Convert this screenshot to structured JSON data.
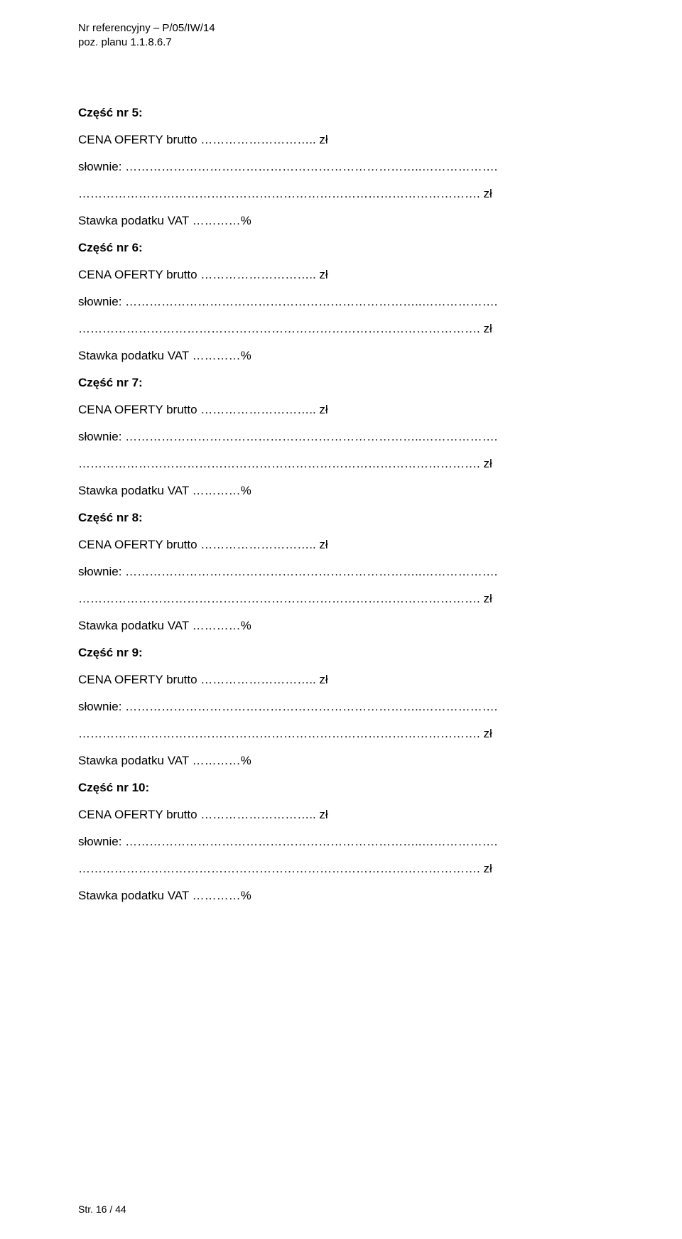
{
  "header": {
    "ref_line": "Nr referencyjny – P/05/IW/14",
    "plan_line": "poz. planu 1.1.8.6.7"
  },
  "sections": [
    {
      "title": "Część nr 5:",
      "cena": "CENA OFERTY brutto ……………………….. zł",
      "slownie": "słownie: ………………………………………………………………..……………….",
      "dots": "………………………………………………………………………………………. zł",
      "vat": "Stawka podatku VAT …………%"
    },
    {
      "title": "Część nr 6:",
      "cena": "CENA OFERTY brutto ……………………….. zł",
      "slownie": "słownie: ………………………………………………………………..……………….",
      "dots": "………………………………………………………………………………………. zł",
      "vat": "Stawka podatku VAT …………%"
    },
    {
      "title": "Część nr 7:",
      "cena": "CENA OFERTY brutto ……………………….. zł",
      "slownie": "słownie: ………………………………………………………………..……………….",
      "dots": "………………………………………………………………………………………. zł",
      "vat": "Stawka podatku VAT …………%"
    },
    {
      "title": "Część nr 8:",
      "cena": "CENA OFERTY brutto ……………………….. zł",
      "slownie": "słownie: ………………………………………………………………..……………….",
      "dots": "………………………………………………………………………………………. zł",
      "vat": "Stawka podatku VAT …………%"
    },
    {
      "title": "Część nr 9:",
      "cena": "CENA OFERTY brutto ……………………….. zł",
      "slownie": "słownie: ………………………………………………………………..……………….",
      "dots": "………………………………………………………………………………………. zł",
      "vat": "Stawka podatku VAT …………%"
    },
    {
      "title": "Część nr 10:",
      "cena": "CENA OFERTY brutto ……………………….. zł",
      "slownie": "słownie: ………………………………………………………………..……………….",
      "dots": "………………………………………………………………………………………. zł",
      "vat": "Stawka podatku VAT …………%"
    }
  ],
  "footer": "Str. 16 / 44"
}
